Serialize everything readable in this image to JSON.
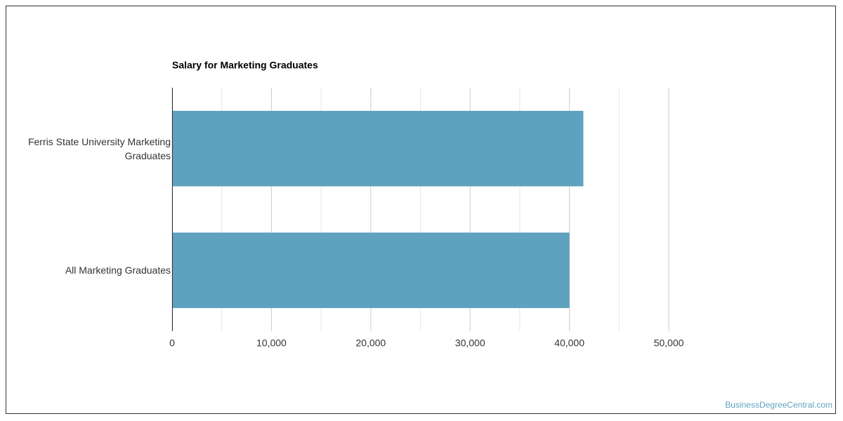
{
  "chart_data": {
    "type": "bar",
    "orientation": "horizontal",
    "title": "Salary for Marketing Graduates",
    "categories": [
      "Ferris State University Marketing Graduates",
      "All Marketing Graduates"
    ],
    "values": [
      41400,
      40000
    ],
    "color": "#5ea2bf",
    "xlim": [
      0,
      50000
    ],
    "xticks": [
      0,
      {
        "value": 10000,
        "label": "10,000"
      },
      {
        "value": 20000,
        "label": "20,000"
      },
      {
        "value": 30000,
        "label": "30,000"
      },
      {
        "value": 40000,
        "label": "40,000"
      },
      {
        "value": 50000,
        "label": "50,000"
      }
    ],
    "minor_xticks": [
      5000,
      15000,
      25000,
      35000,
      45000
    ],
    "grid": true
  },
  "footer": {
    "watermark": "BusinessDegreeCentral.com"
  }
}
